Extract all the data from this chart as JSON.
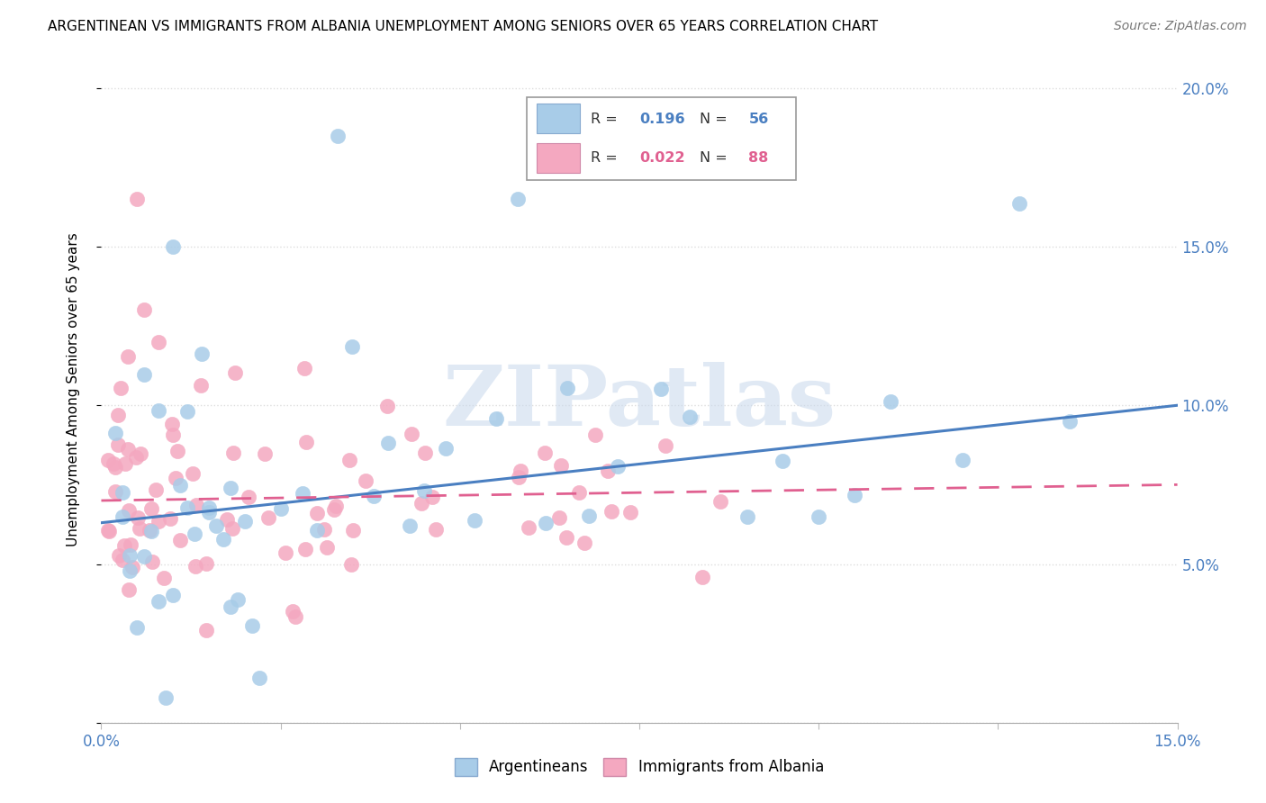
{
  "title": "ARGENTINEAN VS IMMIGRANTS FROM ALBANIA UNEMPLOYMENT AMONG SENIORS OVER 65 YEARS CORRELATION CHART",
  "source": "Source: ZipAtlas.com",
  "ylabel": "Unemployment Among Seniors over 65 years",
  "xlim": [
    0.0,
    0.15
  ],
  "ylim": [
    0.0,
    0.21
  ],
  "ytick_positions": [
    0.0,
    0.05,
    0.1,
    0.15,
    0.2
  ],
  "ytick_labels": [
    "",
    "5.0%",
    "10.0%",
    "15.0%",
    "20.0%"
  ],
  "xtick_positions": [
    0.0,
    0.025,
    0.05,
    0.075,
    0.1,
    0.125,
    0.15
  ],
  "xtick_labels": [
    "0.0%",
    "",
    "",
    "",
    "",
    "",
    "15.0%"
  ],
  "legend_r1": "0.196",
  "legend_n1": "56",
  "legend_r2": "0.022",
  "legend_n2": "88",
  "color_blue": "#a8cce8",
  "color_pink": "#f4a8c0",
  "color_blue_line": "#4a7fc1",
  "color_pink_line": "#e06090",
  "trend_blue": [
    0.063,
    0.1
  ],
  "trend_pink": [
    0.07,
    0.075
  ],
  "watermark": "ZIPatlas",
  "legend_label1": "Argentineans",
  "legend_label2": "Immigrants from Albania",
  "seed": 77
}
